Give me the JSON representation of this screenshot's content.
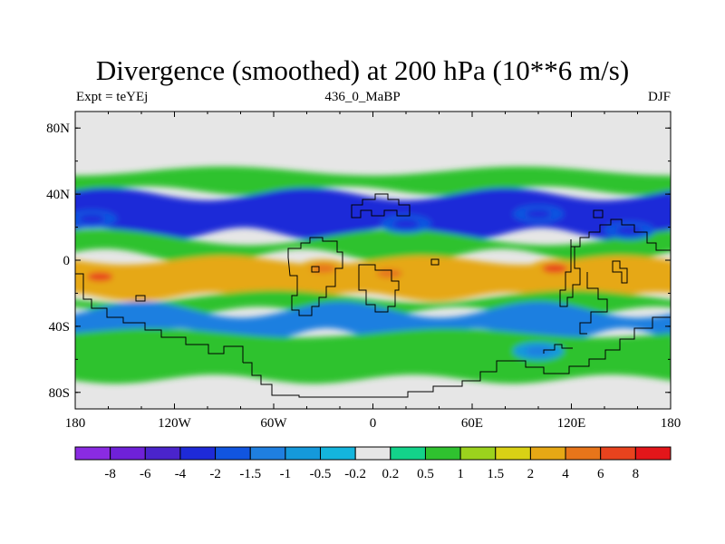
{
  "figure": {
    "title": "Divergence (smoothed) at 200 hPa (10**6 m/s)",
    "left_label": "Expt = teYEj",
    "center_label": "436_0_MaBP",
    "right_label": "DJF"
  },
  "chart_data": {
    "type": "heatmap",
    "title": "Divergence (smoothed) at 200 hPa (10**6 m/s)",
    "variable": "Divergence (smoothed) at 200 hPa",
    "units": "10**6 m/s",
    "experiment": "teYEj",
    "period": "436_0_MaBP",
    "season": "DJF",
    "lon_range": [
      -180,
      180
    ],
    "lat_range": [
      -90,
      90
    ],
    "x_ticks": [
      {
        "value": -180,
        "label": "180"
      },
      {
        "value": -120,
        "label": "120W"
      },
      {
        "value": -60,
        "label": "60W"
      },
      {
        "value": 0,
        "label": "0"
      },
      {
        "value": 60,
        "label": "60E"
      },
      {
        "value": 120,
        "label": "120E"
      },
      {
        "value": 180,
        "label": "180"
      }
    ],
    "y_ticks": [
      {
        "value": 80,
        "label": "80N"
      },
      {
        "value": 40,
        "label": "40N"
      },
      {
        "value": 0,
        "label": "0"
      },
      {
        "value": -40,
        "label": "40S"
      },
      {
        "value": -80,
        "label": "80S"
      }
    ],
    "colorbar": {
      "levels": [
        -8,
        -6,
        -4,
        -2,
        -1.5,
        -1,
        -0.5,
        -0.2,
        0.2,
        0.5,
        1,
        1.5,
        2,
        4,
        6,
        8
      ],
      "labels": [
        "-8",
        "-6",
        "-4",
        "-2",
        "-1.5",
        "-1",
        "-0.5",
        "-0.2",
        "0.2",
        "0.5",
        "1",
        "1.5",
        "2",
        "4",
        "6",
        "8"
      ],
      "colors": [
        "#8a2be2",
        "#6f21d8",
        "#4a24cc",
        "#1e2ad8",
        "#1155e0",
        "#1f7fe0",
        "#1599db",
        "#14b5dd",
        "#e6e6e6",
        "#13d38a",
        "#2fc22f",
        "#9bd21d",
        "#d9d115",
        "#e6a815",
        "#e7751a",
        "#e8431e",
        "#e3161a"
      ]
    },
    "bands": [
      {
        "lat_range": [
          54,
          42
        ],
        "value": 0.7,
        "description": "northern mid-latitude convergence belt"
      },
      {
        "lat_range": [
          40,
          16
        ],
        "value": -2.5,
        "description": "northern subtropical descent band"
      },
      {
        "lat_range": [
          14,
          2
        ],
        "value": 0.8
      },
      {
        "lat_range": [
          0,
          -22
        ],
        "value": 2.5,
        "description": "tropical upper-level divergence"
      },
      {
        "lat_range": [
          -22,
          -32
        ],
        "value": 0.6
      },
      {
        "lat_range": [
          -30,
          -46
        ],
        "value": -1.2
      },
      {
        "lat_range": [
          -44,
          -72
        ],
        "value": 0.6
      }
    ],
    "maxima": [
      {
        "lon": -165,
        "lat": -10,
        "value": 6
      },
      {
        "lon": 110,
        "lat": -5,
        "value": 6
      },
      {
        "lon": -30,
        "lat": -5,
        "value": 4
      },
      {
        "lon": 10,
        "lat": -8,
        "value": 4
      }
    ],
    "minima": [
      {
        "lon": -170,
        "lat": 25,
        "value": -4
      },
      {
        "lon": 20,
        "lat": 22,
        "value": -4
      },
      {
        "lon": 100,
        "lat": 28,
        "value": -4
      },
      {
        "lon": 155,
        "lat": 18,
        "value": -4
      },
      {
        "lon": 100,
        "lat": -55,
        "value": -1.5
      }
    ],
    "overlay": "coastlines (stepped)"
  }
}
